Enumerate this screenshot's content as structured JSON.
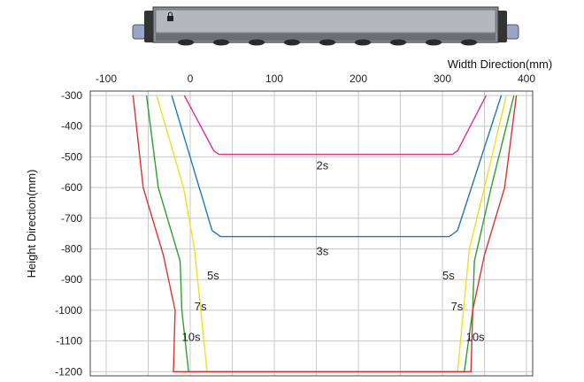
{
  "chart_data": {
    "type": "line",
    "title": "",
    "xlabel": "Width Direction(mm)",
    "ylabel": "Height Direction(mm)",
    "xlim": [
      -100,
      400
    ],
    "ylim": [
      -300,
      -1200
    ],
    "x_ticks": [
      "-100",
      "0",
      "100",
      "200",
      "300",
      "400"
    ],
    "y_ticks": [
      "-300",
      "-400",
      "-500",
      "-600",
      "-700",
      "-800",
      "-900",
      "-1000",
      "-1100",
      "-1200"
    ],
    "grid": true,
    "colors": {
      "2s": "#e0308a",
      "3s": "#1f77b4",
      "5s": "#f0e020",
      "7s": "#2ca02c",
      "10s": "#e03030"
    },
    "series": [
      {
        "name": "2s",
        "x": [
          -7,
          28,
          34,
          312,
          318,
          352
        ],
        "y": [
          -300,
          -480,
          -492,
          -492,
          -480,
          -300
        ]
      },
      {
        "name": "3s",
        "x": [
          -22,
          26,
          36,
          308,
          318,
          370
        ],
        "y": [
          -300,
          -740,
          -760,
          -760,
          -740,
          -300
        ]
      },
      {
        "name": "5s",
        "x": [
          -40,
          -8,
          5,
          20,
          318,
          332,
          350,
          376
        ],
        "y": [
          -300,
          -600,
          -800,
          -1200,
          -1200,
          -800,
          -600,
          -300
        ]
      },
      {
        "name": "7s",
        "x": [
          -52,
          -38,
          -12,
          -10,
          -2,
          326,
          336,
          338,
          358,
          385
        ],
        "y": [
          -300,
          -600,
          -840,
          -1000,
          -1200,
          -1200,
          -1000,
          -840,
          -600,
          -300
        ]
      },
      {
        "name": "10s",
        "x": [
          -68,
          -56,
          -32,
          -18,
          -20,
          334,
          336,
          350,
          374,
          388
        ],
        "y": [
          -300,
          -600,
          -820,
          -1000,
          -1200,
          -1200,
          -1000,
          -820,
          -600,
          -300
        ]
      }
    ],
    "annotations": [
      {
        "text": "2s",
        "x": 150,
        "y": -540
      },
      {
        "text": "3s",
        "x": 150,
        "y": -820
      },
      {
        "text": "5s",
        "x": 20,
        "y": -900
      },
      {
        "text": "5s",
        "x": 300,
        "y": -900
      },
      {
        "text": "7s",
        "x": 5,
        "y": -1000
      },
      {
        "text": "7s",
        "x": 310,
        "y": -1000
      },
      {
        "text": "10s",
        "x": -10,
        "y": -1100
      },
      {
        "text": "10s",
        "x": 328,
        "y": -1100
      }
    ]
  }
}
